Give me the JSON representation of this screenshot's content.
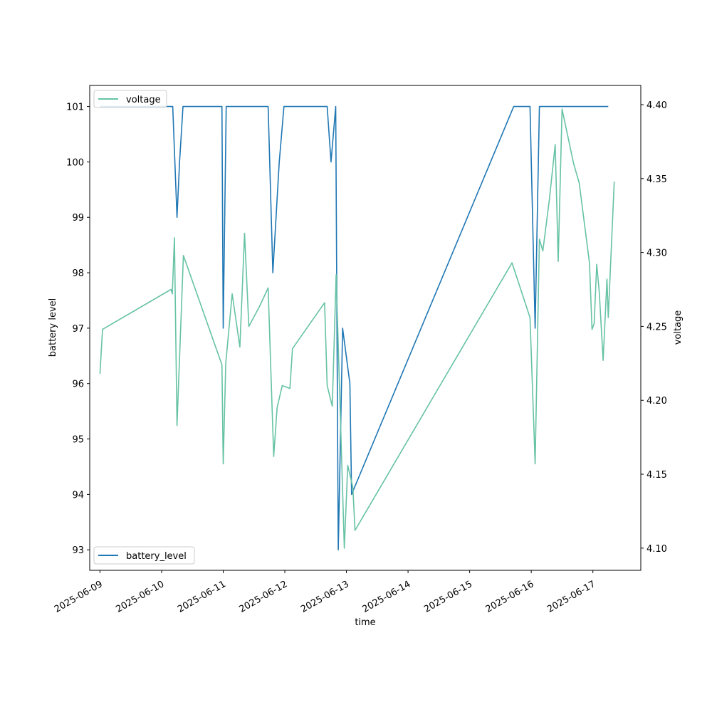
{
  "chart_data": {
    "type": "line",
    "xlabel": "time",
    "ylabel_left": "battery level",
    "ylabel_right": "voltage",
    "x_ticks": [
      "2025-06-09",
      "2025-06-10",
      "2025-06-11",
      "2025-06-12",
      "2025-06-13",
      "2025-06-14",
      "2025-06-15",
      "2025-06-16",
      "2025-06-17"
    ],
    "x_range": [
      "2025-06-08T20:00",
      "2025-06-17T18:40"
    ],
    "left_ticks": [
      93,
      94,
      95,
      96,
      97,
      98,
      99,
      100,
      101
    ],
    "left_range": [
      92.63,
      101.38
    ],
    "right_ticks": [
      "4.10",
      "4.15",
      "4.20",
      "4.25",
      "4.30",
      "4.35",
      "4.40"
    ],
    "right_range": [
      4.085,
      4.413
    ],
    "legend_left": "top-left",
    "legend_right": "bottom-left",
    "series": [
      {
        "name": "battery_level",
        "axis": "left",
        "color": "#1f77b4",
        "points": [
          [
            "2025-06-09T00:00",
            101
          ],
          [
            "2025-06-10T04:20",
            101
          ],
          [
            "2025-06-10T06:00",
            99
          ],
          [
            "2025-06-10T07:00",
            100
          ],
          [
            "2025-06-10T08:20",
            101
          ],
          [
            "2025-06-10T23:30",
            101
          ],
          [
            "2025-06-11T00:00",
            97
          ],
          [
            "2025-06-11T01:10",
            101
          ],
          [
            "2025-06-11T17:30",
            101
          ],
          [
            "2025-06-11T19:20",
            98
          ],
          [
            "2025-06-11T21:50",
            100
          ],
          [
            "2025-06-11T23:40",
            101
          ],
          [
            "2025-06-12T16:30",
            101
          ],
          [
            "2025-06-12T18:00",
            100
          ],
          [
            "2025-06-12T19:50",
            101
          ],
          [
            "2025-06-12T20:50",
            93
          ],
          [
            "2025-06-12T22:30",
            97
          ],
          [
            "2025-06-13T01:20",
            96
          ],
          [
            "2025-06-13T02:00",
            94
          ],
          [
            "2025-06-15T17:10",
            101
          ],
          [
            "2025-06-15T23:30",
            101
          ],
          [
            "2025-06-16T01:30",
            97
          ],
          [
            "2025-06-16T03:10",
            101
          ],
          [
            "2025-06-17T06:00",
            101
          ]
        ]
      },
      {
        "name": "voltage",
        "axis": "right",
        "color": "#66c2a5",
        "points": [
          [
            "2025-06-09T00:00",
            4.218
          ],
          [
            "2025-06-09T01:00",
            4.248
          ],
          [
            "2025-06-10T03:40",
            4.275
          ],
          [
            "2025-06-10T04:10",
            4.272
          ],
          [
            "2025-06-10T05:00",
            4.31
          ],
          [
            "2025-06-10T06:00",
            4.183
          ],
          [
            "2025-06-10T08:30",
            4.298
          ],
          [
            "2025-06-10T23:30",
            4.224
          ],
          [
            "2025-06-11T00:00",
            4.157
          ],
          [
            "2025-06-11T01:00",
            4.225
          ],
          [
            "2025-06-11T03:30",
            4.272
          ],
          [
            "2025-06-11T06:30",
            4.236
          ],
          [
            "2025-06-11T08:20",
            4.313
          ],
          [
            "2025-06-11T10:00",
            4.25
          ],
          [
            "2025-06-11T14:00",
            4.263
          ],
          [
            "2025-06-11T17:30",
            4.276
          ],
          [
            "2025-06-11T19:40",
            4.162
          ],
          [
            "2025-06-11T21:00",
            4.195
          ],
          [
            "2025-06-11T23:00",
            4.21
          ],
          [
            "2025-06-12T02:00",
            4.208
          ],
          [
            "2025-06-12T03:00",
            4.235
          ],
          [
            "2025-06-12T15:30",
            4.266
          ],
          [
            "2025-06-12T16:30",
            4.21
          ],
          [
            "2025-06-12T18:30",
            4.196
          ],
          [
            "2025-06-12T20:00",
            4.285
          ],
          [
            "2025-06-12T23:10",
            4.1
          ],
          [
            "2025-06-13T00:30",
            4.156
          ],
          [
            "2025-06-13T02:30",
            4.141
          ],
          [
            "2025-06-13T03:20",
            4.112
          ],
          [
            "2025-06-15T16:30",
            4.293
          ],
          [
            "2025-06-15T23:30",
            4.256
          ],
          [
            "2025-06-16T01:30",
            4.157
          ],
          [
            "2025-06-16T03:10",
            4.309
          ],
          [
            "2025-06-16T04:30",
            4.301
          ],
          [
            "2025-06-16T07:00",
            4.335
          ],
          [
            "2025-06-16T09:20",
            4.373
          ],
          [
            "2025-06-16T10:30",
            4.294
          ],
          [
            "2025-06-16T12:00",
            4.397
          ],
          [
            "2025-06-16T16:30",
            4.36
          ],
          [
            "2025-06-16T18:40",
            4.347
          ],
          [
            "2025-06-16T22:40",
            4.293
          ],
          [
            "2025-06-16T23:40",
            4.248
          ],
          [
            "2025-06-17T00:30",
            4.252
          ],
          [
            "2025-06-17T01:30",
            4.292
          ],
          [
            "2025-06-17T02:30",
            4.273
          ],
          [
            "2025-06-17T04:00",
            4.227
          ],
          [
            "2025-06-17T05:30",
            4.282
          ],
          [
            "2025-06-17T06:00",
            4.256
          ],
          [
            "2025-06-17T08:20",
            4.348
          ]
        ]
      }
    ]
  }
}
